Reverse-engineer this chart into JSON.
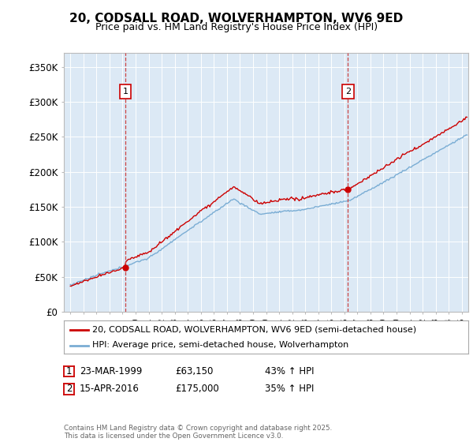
{
  "title": "20, CODSALL ROAD, WOLVERHAMPTON, WV6 9ED",
  "subtitle": "Price paid vs. HM Land Registry's House Price Index (HPI)",
  "background_color": "#ffffff",
  "plot_bg_color": "#dce9f5",
  "red_line_color": "#cc0000",
  "blue_line_color": "#7aadd4",
  "marker1_x": 1999.22,
  "marker2_x": 2016.28,
  "marker1_y": 63150,
  "marker2_y": 175000,
  "ylim": [
    0,
    370000
  ],
  "yticks": [
    0,
    50000,
    100000,
    150000,
    200000,
    250000,
    300000,
    350000
  ],
  "ytick_labels": [
    "£0",
    "£50K",
    "£100K",
    "£150K",
    "£200K",
    "£250K",
    "£300K",
    "£350K"
  ],
  "xlim": [
    1994.5,
    2025.5
  ],
  "footer": "Contains HM Land Registry data © Crown copyright and database right 2025.\nThis data is licensed under the Open Government Licence v3.0.",
  "legend_label_red": "20, CODSALL ROAD, WOLVERHAMPTON, WV6 9ED (semi-detached house)",
  "legend_label_blue": "HPI: Average price, semi-detached house, Wolverhampton",
  "sale1_date": "23-MAR-1999",
  "sale1_price": "£63,150",
  "sale1_hpi": "43% ↑ HPI",
  "sale2_date": "15-APR-2016",
  "sale2_price": "£175,000",
  "sale2_hpi": "35% ↑ HPI"
}
